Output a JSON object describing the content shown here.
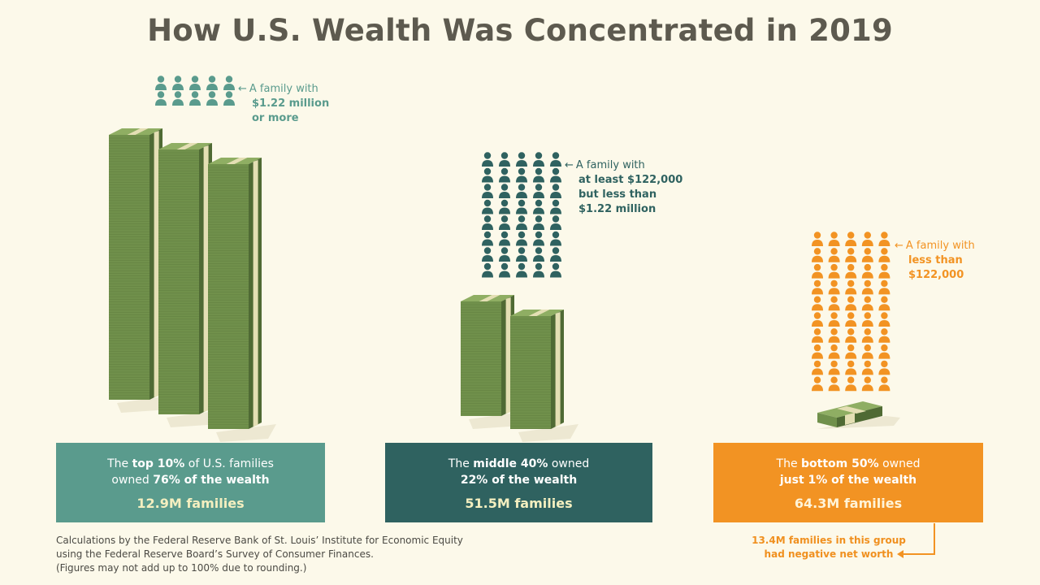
{
  "title": "How U.S. Wealth Was Concentrated in 2019",
  "colors": {
    "top": "#5a9b8d",
    "middle": "#2f6260",
    "bottom": "#f29323",
    "money_front": "#70904b",
    "money_side": "#4f6a34",
    "money_band": "#e4dfb4",
    "title": "#5d5a4f"
  },
  "chart_data": {
    "type": "pictograph",
    "title": "How U.S. Wealth Was Concentrated in 2019",
    "groups": [
      {
        "id": "top",
        "share_of_families_pct": 10,
        "share_of_wealth_pct": 76,
        "families": "12.9M families",
        "icon_count": 10,
        "money_stacks": 3,
        "legend": [
          "A family with",
          "$1.22 million",
          "or more"
        ],
        "panel_line1_pre": "The ",
        "panel_line1_bold": "top 10%",
        "panel_line1_post": " of U.S. families",
        "panel_line2_pre": "owned ",
        "panel_line2_bold": "76% of the wealth",
        "panel_line2_post": ""
      },
      {
        "id": "middle",
        "share_of_families_pct": 40,
        "share_of_wealth_pct": 22,
        "families": "51.5M families",
        "icon_count": 40,
        "money_stacks": 2,
        "legend": [
          "A family with",
          "at least $122,000",
          "but less than",
          "$1.22 million"
        ],
        "panel_line1_pre": "The ",
        "panel_line1_bold": "middle 40%",
        "panel_line1_post": " owned",
        "panel_line2_pre": "",
        "panel_line2_bold": "22% of the wealth",
        "panel_line2_post": ""
      },
      {
        "id": "bottom",
        "share_of_families_pct": 50,
        "share_of_wealth_pct": 1,
        "families": "64.3M families",
        "icon_count": 50,
        "money_stacks": 1,
        "legend": [
          "A family with",
          "less than",
          "$122,000"
        ],
        "panel_line1_pre": "The ",
        "panel_line1_bold": "bottom 50%",
        "panel_line1_post": " owned",
        "panel_line2_pre": "",
        "panel_line2_bold": "just 1% of the wealth",
        "panel_line2_post": ""
      }
    ],
    "negative_net_worth_note": [
      "13.4M families in this group",
      "had negative net worth"
    ]
  },
  "source": [
    "Calculations by the Federal Reserve Bank of St. Louis’ Institute for Economic Equity",
    "using the Federal Reserve Board’s Survey of Consumer Finances.",
    "(Figures may not add up to 100% due to rounding.)"
  ]
}
